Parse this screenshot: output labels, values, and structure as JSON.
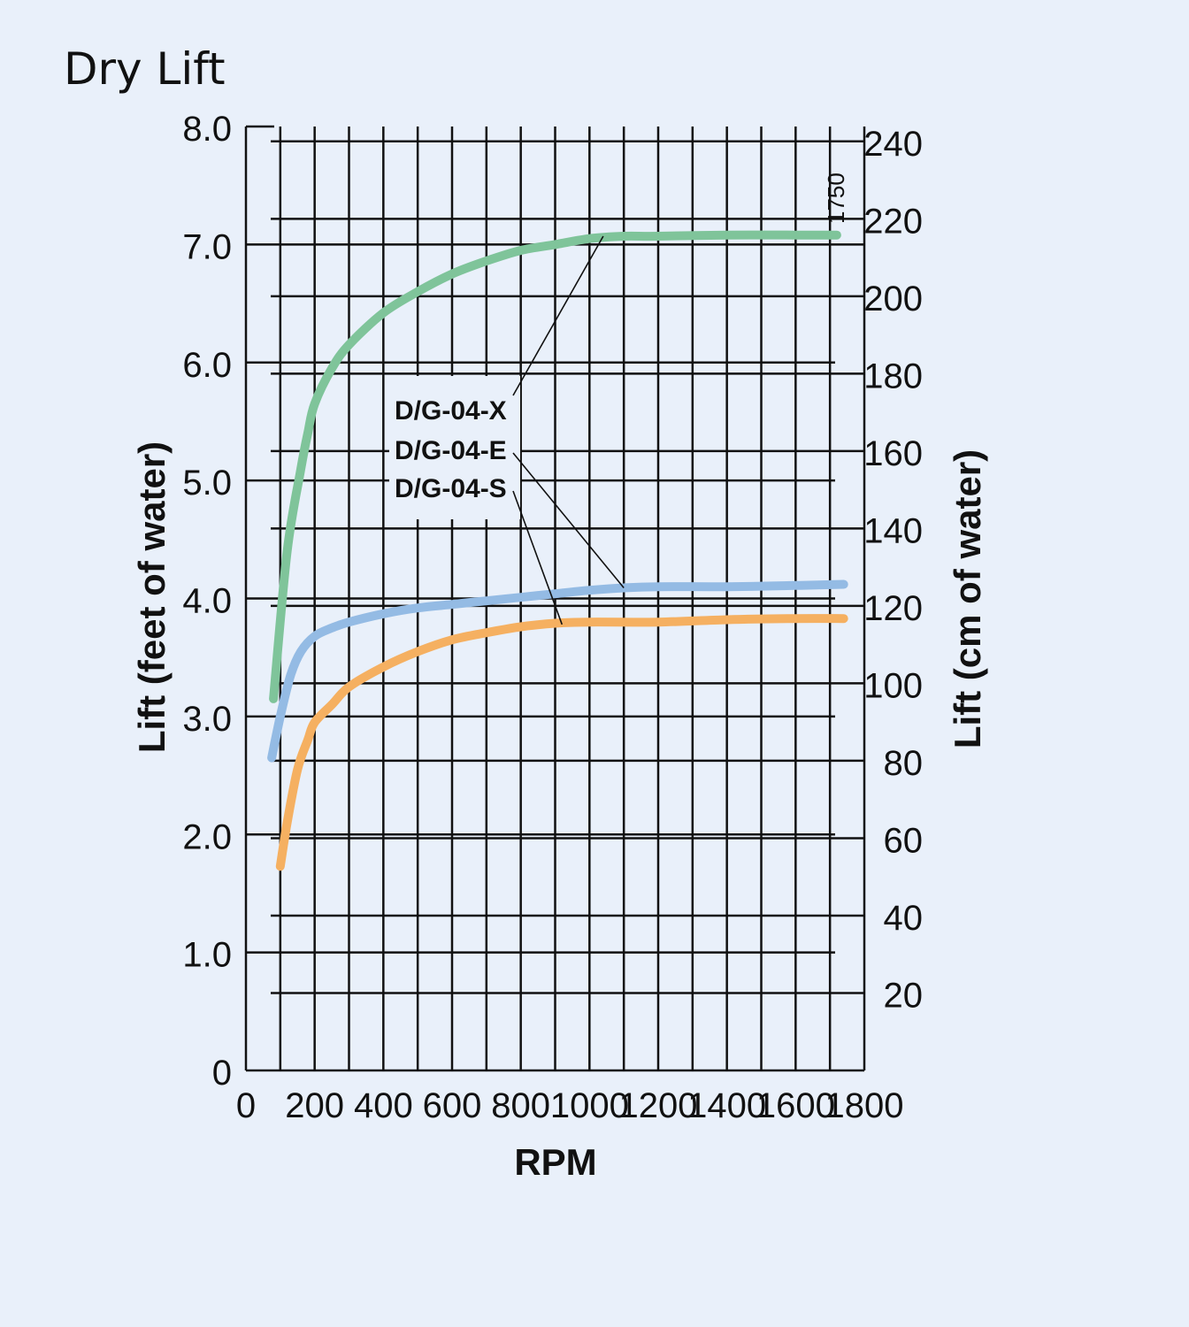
{
  "chart_data": {
    "type": "line",
    "title": "Dry Lift",
    "xlabel": "RPM",
    "ylabel": "Lift (feet of water)",
    "y2label": "Lift (cm of water)",
    "xlim": [
      0,
      1800
    ],
    "ylim": [
      0,
      8
    ],
    "x_ticks": [
      "0",
      "200",
      "400",
      "600",
      "800",
      "1000",
      "1200",
      "1400",
      "1600",
      "1800"
    ],
    "y_ticks": [
      "0",
      "1.0",
      "2.0",
      "3.0",
      "4.0",
      "5.0",
      "6.0",
      "7.0",
      "8.0"
    ],
    "y2_ticks": [
      "20",
      "40",
      "60",
      "80",
      "100",
      "120",
      "140",
      "160",
      "180",
      "200",
      "220",
      "240"
    ],
    "grid": true,
    "marker_label": "1750",
    "series": [
      {
        "name": "D/G-04-X",
        "color": "#7fc49a",
        "x": [
          80,
          120,
          160,
          180,
          200,
          250,
          300,
          400,
          500,
          600,
          700,
          800,
          900,
          1000,
          1100,
          1200,
          1400,
          1600,
          1720
        ],
        "y": [
          3.15,
          4.4,
          5.1,
          5.4,
          5.65,
          5.95,
          6.15,
          6.42,
          6.6,
          6.75,
          6.86,
          6.95,
          7.0,
          7.05,
          7.07,
          7.07,
          7.08,
          7.08,
          7.08
        ]
      },
      {
        "name": "D/G-04-E",
        "color": "#94bbe4",
        "x": [
          75,
          100,
          130,
          160,
          200,
          250,
          300,
          400,
          500,
          600,
          700,
          800,
          900,
          1000,
          1100,
          1200,
          1400,
          1600,
          1740
        ],
        "y": [
          2.65,
          3.0,
          3.35,
          3.55,
          3.68,
          3.75,
          3.8,
          3.87,
          3.92,
          3.95,
          3.98,
          4.01,
          4.04,
          4.07,
          4.09,
          4.1,
          4.1,
          4.11,
          4.12
        ]
      },
      {
        "name": "D/G-04-S",
        "color": "#f5b061",
        "x": [
          100,
          120,
          150,
          180,
          200,
          250,
          300,
          400,
          500,
          600,
          700,
          800,
          900,
          1000,
          1200,
          1400,
          1600,
          1740
        ],
        "y": [
          1.73,
          2.1,
          2.55,
          2.8,
          2.95,
          3.1,
          3.25,
          3.42,
          3.55,
          3.65,
          3.71,
          3.76,
          3.79,
          3.8,
          3.8,
          3.82,
          3.83,
          3.83
        ]
      }
    ],
    "annotations": [
      {
        "text": "D/G-04-X",
        "series": "D/G-04-X"
      },
      {
        "text": "D/G-04-E",
        "series": "D/G-04-E"
      },
      {
        "text": "D/G-04-S",
        "series": "D/G-04-S"
      }
    ]
  }
}
